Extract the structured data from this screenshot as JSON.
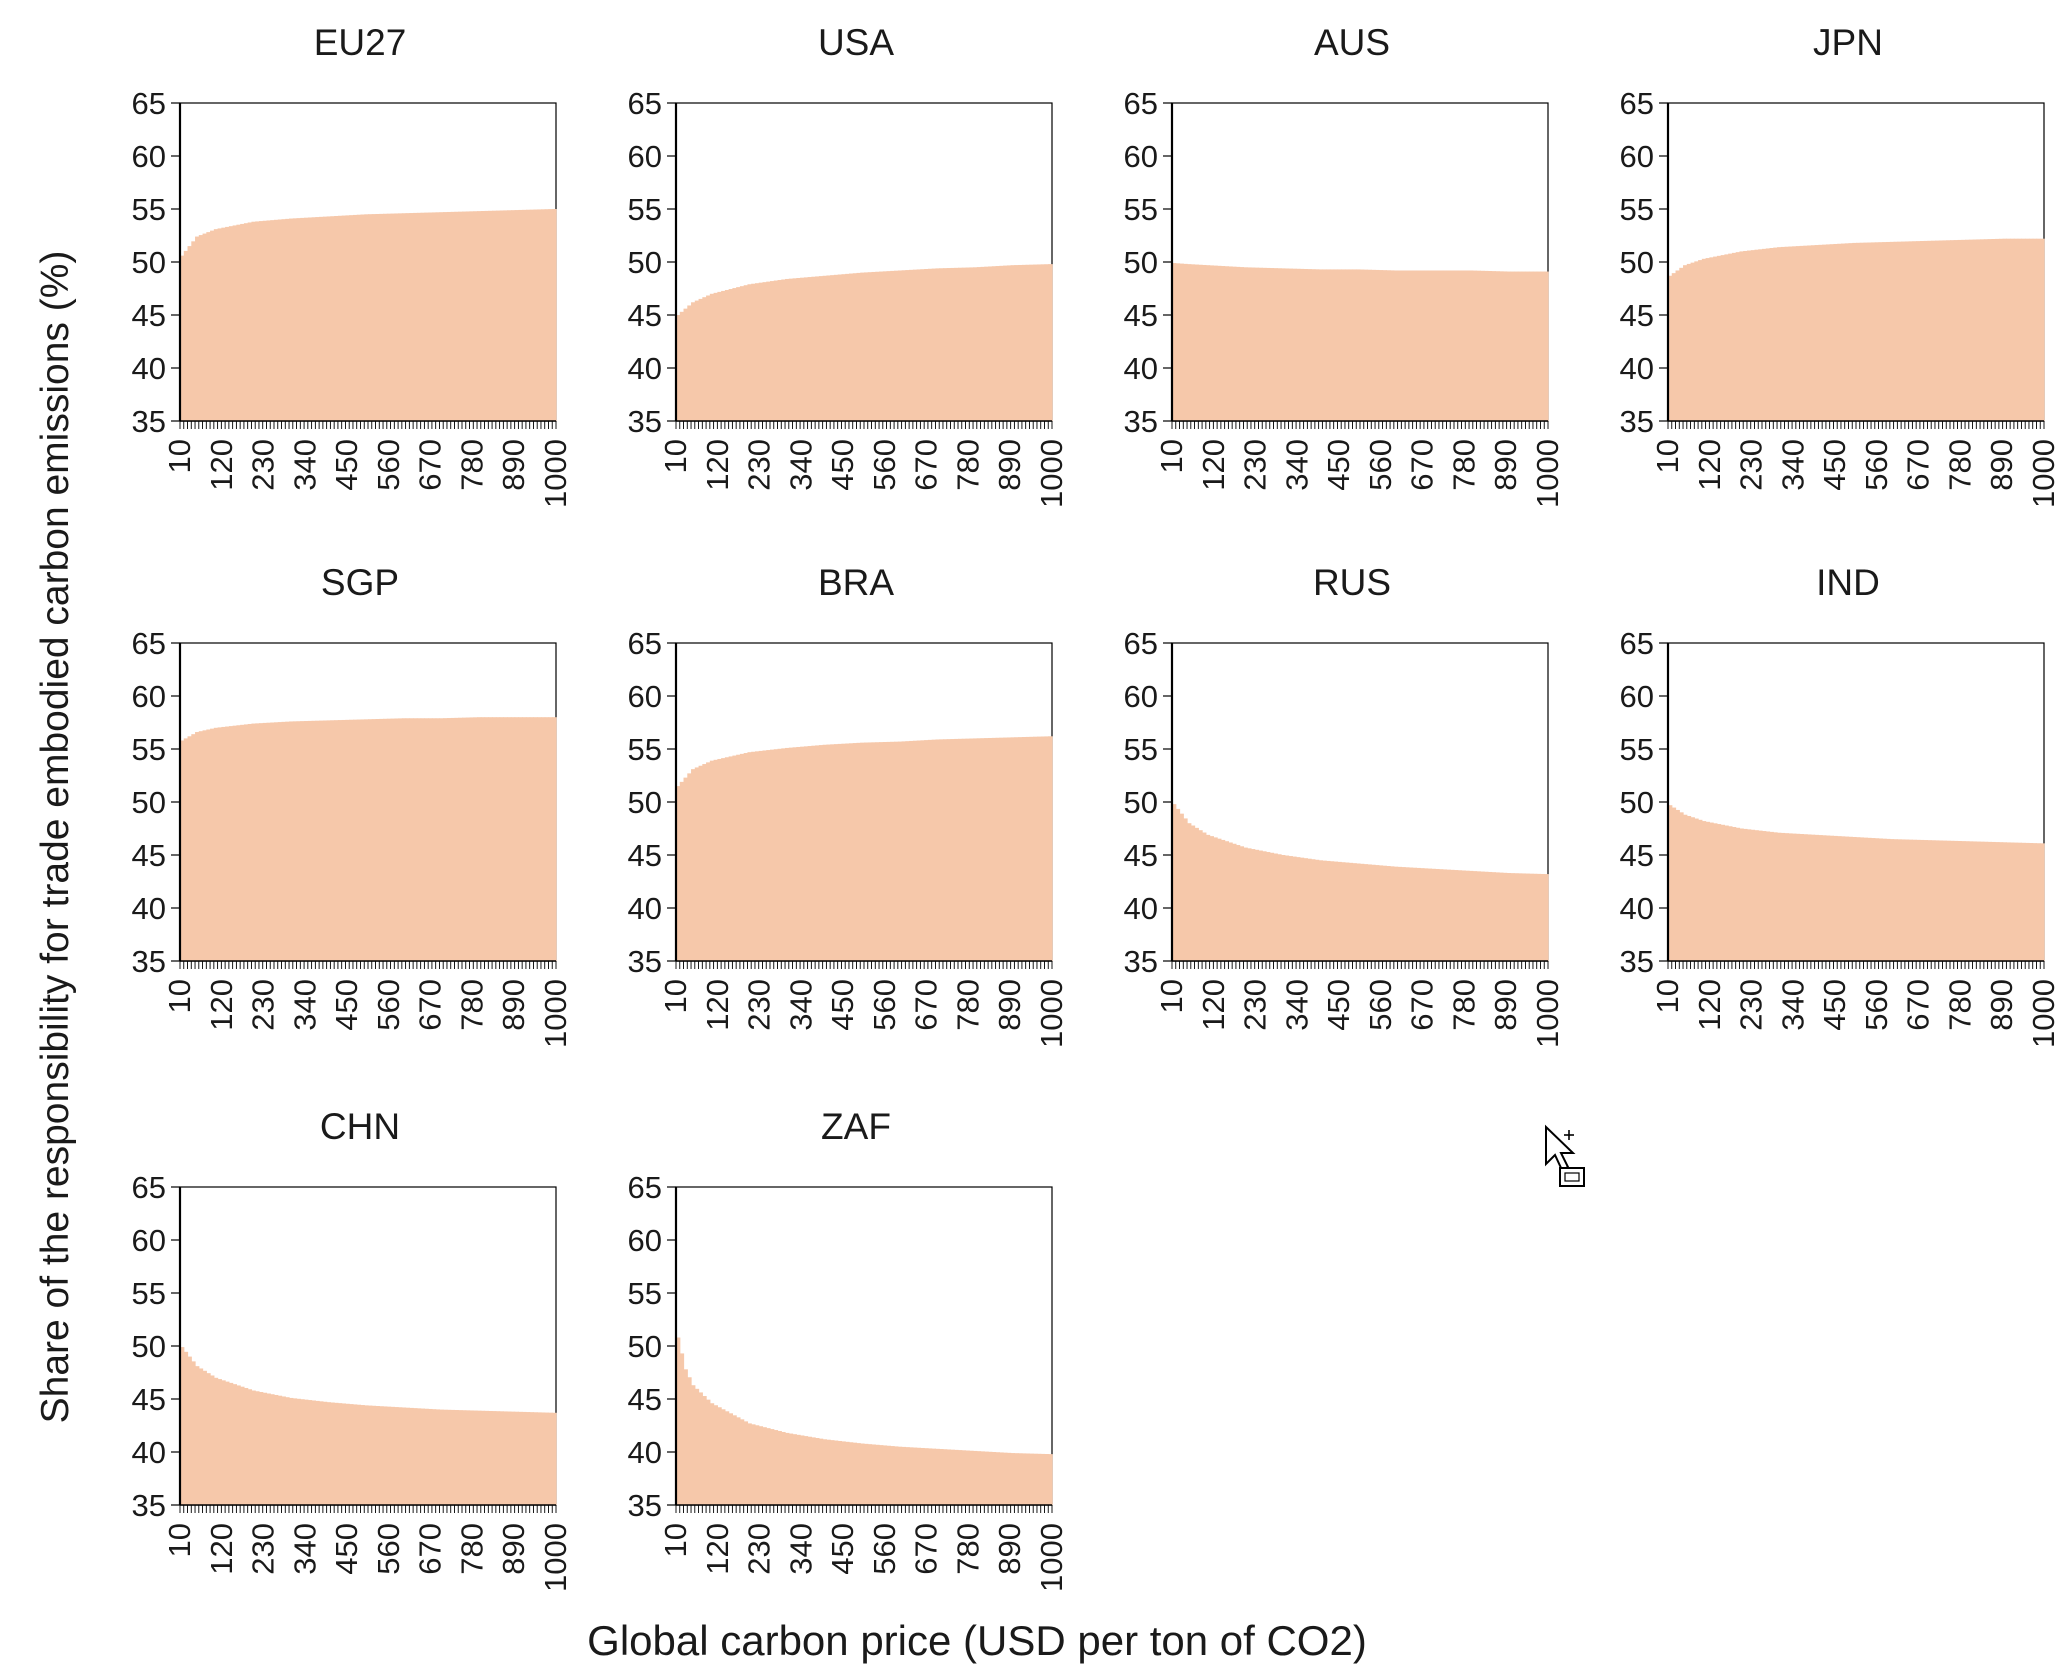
{
  "figure": {
    "ylabel": "Share of the responsibility for trade embodied carbon emissions (%)",
    "xlabel": "Global carbon price (USD per ton of CO2)"
  },
  "colors": {
    "area": "#f6c8aa",
    "axis": "#000000",
    "frame": "#000000"
  },
  "cursor": {
    "icon": "copy-cursor-icon"
  },
  "chart_data": [
    {
      "type": "bar",
      "title": "EU27",
      "ylim": [
        35,
        65
      ],
      "yticks": [
        35,
        40,
        45,
        50,
        55,
        60,
        65
      ],
      "xticks": [
        10,
        120,
        230,
        340,
        450,
        560,
        670,
        780,
        890,
        1000
      ],
      "xrange": [
        10,
        1000
      ],
      "x": [
        10,
        50,
        100,
        200,
        300,
        400,
        500,
        600,
        700,
        800,
        900,
        1000
      ],
      "values": [
        50.6,
        52.4,
        53.1,
        53.8,
        54.1,
        54.3,
        54.5,
        54.6,
        54.7,
        54.8,
        54.9,
        55.0
      ]
    },
    {
      "type": "bar",
      "title": "USA",
      "ylim": [
        35,
        65
      ],
      "yticks": [
        35,
        40,
        45,
        50,
        55,
        60,
        65
      ],
      "xticks": [
        10,
        120,
        230,
        340,
        450,
        560,
        670,
        780,
        890,
        1000
      ],
      "xrange": [
        10,
        1000
      ],
      "x": [
        10,
        50,
        100,
        200,
        300,
        400,
        500,
        600,
        700,
        800,
        900,
        1000
      ],
      "values": [
        45.0,
        46.2,
        47.0,
        47.9,
        48.4,
        48.7,
        49.0,
        49.2,
        49.4,
        49.5,
        49.7,
        49.8
      ]
    },
    {
      "type": "bar",
      "title": "AUS",
      "ylim": [
        35,
        65
      ],
      "yticks": [
        35,
        40,
        45,
        50,
        55,
        60,
        65
      ],
      "xticks": [
        10,
        120,
        230,
        340,
        450,
        560,
        670,
        780,
        890,
        1000
      ],
      "xrange": [
        10,
        1000
      ],
      "x": [
        10,
        50,
        100,
        200,
        300,
        400,
        500,
        600,
        700,
        800,
        900,
        1000
      ],
      "values": [
        49.9,
        49.8,
        49.7,
        49.5,
        49.4,
        49.3,
        49.3,
        49.2,
        49.2,
        49.2,
        49.1,
        49.1
      ]
    },
    {
      "type": "bar",
      "title": "JPN",
      "ylim": [
        35,
        65
      ],
      "yticks": [
        35,
        40,
        45,
        50,
        55,
        60,
        65
      ],
      "xticks": [
        10,
        120,
        230,
        340,
        450,
        560,
        670,
        780,
        890,
        1000
      ],
      "xrange": [
        10,
        1000
      ],
      "x": [
        10,
        50,
        100,
        200,
        300,
        400,
        500,
        600,
        700,
        800,
        900,
        1000
      ],
      "values": [
        48.7,
        49.7,
        50.3,
        51.0,
        51.4,
        51.6,
        51.8,
        51.9,
        52.0,
        52.1,
        52.2,
        52.2
      ]
    },
    {
      "type": "bar",
      "title": "SGP",
      "ylim": [
        35,
        65
      ],
      "yticks": [
        35,
        40,
        45,
        50,
        55,
        60,
        65
      ],
      "xticks": [
        10,
        120,
        230,
        340,
        450,
        560,
        670,
        780,
        890,
        1000
      ],
      "xrange": [
        10,
        1000
      ],
      "x": [
        10,
        50,
        100,
        200,
        300,
        400,
        500,
        600,
        700,
        800,
        900,
        1000
      ],
      "values": [
        55.8,
        56.6,
        57.0,
        57.4,
        57.6,
        57.7,
        57.8,
        57.9,
        57.9,
        58.0,
        58.0,
        58.0
      ]
    },
    {
      "type": "bar",
      "title": "BRA",
      "ylim": [
        35,
        65
      ],
      "yticks": [
        35,
        40,
        45,
        50,
        55,
        60,
        65
      ],
      "xticks": [
        10,
        120,
        230,
        340,
        450,
        560,
        670,
        780,
        890,
        1000
      ],
      "xrange": [
        10,
        1000
      ],
      "x": [
        10,
        50,
        100,
        200,
        300,
        400,
        500,
        600,
        700,
        800,
        900,
        1000
      ],
      "values": [
        51.5,
        53.1,
        53.9,
        54.7,
        55.1,
        55.4,
        55.6,
        55.7,
        55.9,
        56.0,
        56.1,
        56.2
      ]
    },
    {
      "type": "bar",
      "title": "RUS",
      "ylim": [
        35,
        65
      ],
      "yticks": [
        35,
        40,
        45,
        50,
        55,
        60,
        65
      ],
      "xticks": [
        10,
        120,
        230,
        340,
        450,
        560,
        670,
        780,
        890,
        1000
      ],
      "xrange": [
        10,
        1000
      ],
      "x": [
        10,
        50,
        100,
        200,
        300,
        400,
        500,
        600,
        700,
        800,
        900,
        1000
      ],
      "values": [
        49.8,
        48.0,
        46.9,
        45.7,
        45.0,
        44.5,
        44.2,
        43.9,
        43.7,
        43.5,
        43.3,
        43.2
      ]
    },
    {
      "type": "bar",
      "title": "IND",
      "ylim": [
        35,
        65
      ],
      "yticks": [
        35,
        40,
        45,
        50,
        55,
        60,
        65
      ],
      "xticks": [
        10,
        120,
        230,
        340,
        450,
        560,
        670,
        780,
        890,
        1000
      ],
      "xrange": [
        10,
        1000
      ],
      "x": [
        10,
        50,
        100,
        200,
        300,
        400,
        500,
        600,
        700,
        800,
        900,
        1000
      ],
      "values": [
        49.7,
        48.8,
        48.2,
        47.5,
        47.1,
        46.9,
        46.7,
        46.5,
        46.4,
        46.3,
        46.2,
        46.1
      ]
    },
    {
      "type": "bar",
      "title": "CHN",
      "ylim": [
        35,
        65
      ],
      "yticks": [
        35,
        40,
        45,
        50,
        55,
        60,
        65
      ],
      "xticks": [
        10,
        120,
        230,
        340,
        450,
        560,
        670,
        780,
        890,
        1000
      ],
      "xrange": [
        10,
        1000
      ],
      "x": [
        10,
        50,
        100,
        200,
        300,
        400,
        500,
        600,
        700,
        800,
        900,
        1000
      ],
      "values": [
        49.9,
        48.1,
        47.0,
        45.8,
        45.1,
        44.7,
        44.4,
        44.2,
        44.0,
        43.9,
        43.8,
        43.7
      ]
    },
    {
      "type": "bar",
      "title": "ZAF",
      "ylim": [
        35,
        65
      ],
      "yticks": [
        35,
        40,
        45,
        50,
        55,
        60,
        65
      ],
      "xticks": [
        10,
        120,
        230,
        340,
        450,
        560,
        670,
        780,
        890,
        1000
      ],
      "xrange": [
        10,
        1000
      ],
      "x": [
        10,
        30,
        50,
        100,
        200,
        300,
        400,
        500,
        600,
        700,
        800,
        900,
        1000
      ],
      "values": [
        50.8,
        47.8,
        46.3,
        44.6,
        42.7,
        41.8,
        41.2,
        40.8,
        40.5,
        40.3,
        40.1,
        39.9,
        39.8
      ]
    }
  ]
}
